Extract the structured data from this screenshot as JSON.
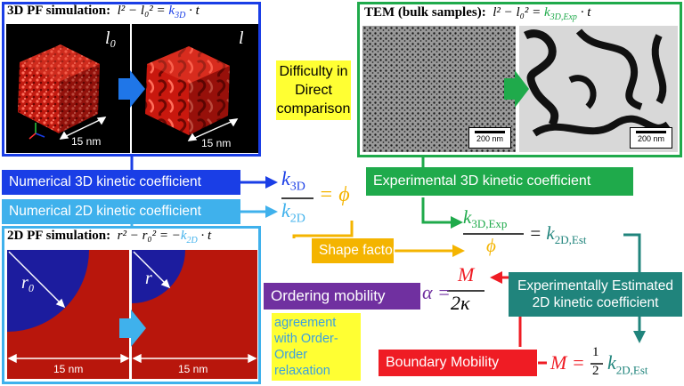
{
  "pf3d": {
    "title_text": "3D PF simulation:",
    "equation_prefix": "l² − l₀² = ",
    "k_symbol": "k",
    "k_sub": "3D",
    "equation_suffix": "· t",
    "l0_label": "l₀",
    "l_label": "l",
    "scale_left": "15 nm",
    "scale_right": "15 nm"
  },
  "pf2d": {
    "title_text": "2D PF simulation:",
    "equation_prefix": "r² − r₀² = −",
    "k_symbol": "k",
    "k_sub": "2D",
    "equation_suffix": "· t",
    "r0_label": "r₀",
    "r_label": "r",
    "scale_left": "15 nm",
    "scale_right": "15 nm"
  },
  "tem": {
    "title_text": "TEM (bulk samples):",
    "equation_prefix": "l² − l₀² = ",
    "k_symbol": "k",
    "k_sub": "3D,Exp",
    "equation_suffix": "· t",
    "scale_left": "200 nm",
    "scale_right": "200 nm"
  },
  "labels": {
    "num3d": "Numerical 3D kinetic coefficient",
    "num2d": "Numerical 2D kinetic coefficient",
    "exp3d": "Experimental 3D kinetic coefficient",
    "est2d_line1": "Experimentally Estimated",
    "est2d_line2": "2D kinetic coefficient",
    "ordering": "Ordering mobility",
    "shape": "Shape factor",
    "boundary": "Boundary Mobility",
    "difficulty": "Difficulty in Direct comparison",
    "agreement": "agreement with Order-Order relaxation"
  },
  "eq1": {
    "num": "k",
    "num_sub": "3D",
    "den": "k",
    "den_sub": "2D",
    "rhs": "= ϕ"
  },
  "eq2": {
    "num": "k",
    "num_sub": "3D,Exp",
    "den": "ϕ",
    "rhs_pre": "= ",
    "rhs": "k",
    "rhs_sub": "2D,Est"
  },
  "eq3": {
    "lhs": "α =",
    "num": "M",
    "den": "2κ"
  },
  "eq4": {
    "lhs": "M =",
    "frac_num": "1",
    "frac_den": "2",
    "rhs": "k",
    "rhs_sub": "2D,Est"
  },
  "colors": {
    "dark_blue": "#1a3ee6",
    "light_blue": "#3fb1ec",
    "green": "#1faa4b",
    "teal": "#20847c",
    "orange": "#f4b400",
    "red": "#ef1c24",
    "purple": "#7030a0",
    "yellow": "#ffff33",
    "sim_red": "#b8160c",
    "sim_blue": "#1c1c9e"
  }
}
